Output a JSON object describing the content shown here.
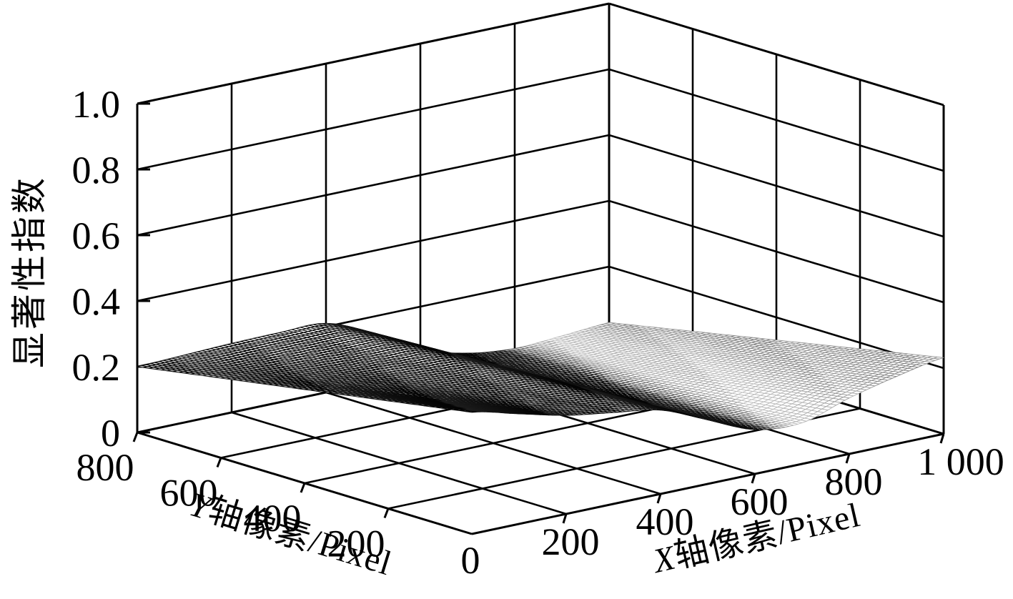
{
  "figure": {
    "background": "#ffffff",
    "line_color": "#000000",
    "kind": "3D mesh surface plot"
  },
  "z_axis": {
    "label": "显著性指数",
    "ticks": [
      "0",
      "0.2",
      "0.4",
      "0.6",
      "0.8",
      "1.0"
    ],
    "tick_values": [
      0,
      0.2,
      0.4,
      0.6,
      0.8,
      1.0
    ],
    "range": [
      0,
      1
    ]
  },
  "y_axis": {
    "label": "Y轴像素/Pixel",
    "ticks": [
      "800",
      "600",
      "400",
      "200"
    ],
    "tick_values": [
      800,
      600,
      400,
      200
    ],
    "range": [
      0,
      800
    ]
  },
  "x_axis": {
    "label": "X轴像素/Pixel",
    "ticks": [
      "0",
      "200",
      "400",
      "600",
      "800",
      "1 000"
    ],
    "tick_values": [
      0,
      200,
      400,
      600,
      800,
      1000
    ],
    "range": [
      0,
      1000
    ]
  },
  "chart_data": {
    "type": "surface",
    "title": "",
    "xlabel": "X轴像素/Pixel",
    "ylabel": "Y轴像素/Pixel",
    "zlabel": "显著性指数",
    "x_range": [
      0,
      1000
    ],
    "y_range": [
      0,
      800
    ],
    "z_range": [
      0,
      1
    ],
    "grid": true,
    "legend": "none",
    "x_values": [
      0,
      100,
      200,
      300,
      400,
      500,
      600,
      700,
      800,
      900,
      1000
    ],
    "y_values": [
      0,
      200,
      400,
      600,
      800
    ],
    "z_grid": [
      [
        0.37,
        0.335,
        0.3,
        0.278,
        0.255,
        0.195,
        0.135,
        0.125,
        0.17,
        0.205,
        0.232
      ],
      [
        0.328,
        0.303,
        0.278,
        0.262,
        0.244,
        0.184,
        0.119,
        0.101,
        0.131,
        0.159,
        0.182
      ],
      [
        0.285,
        0.27,
        0.255,
        0.245,
        0.233,
        0.173,
        0.103,
        0.077,
        0.091,
        0.113,
        0.131
      ],
      [
        0.243,
        0.238,
        0.233,
        0.229,
        0.221,
        0.161,
        0.086,
        0.052,
        0.052,
        0.066,
        0.081
      ],
      [
        0.2,
        0.205,
        0.21,
        0.212,
        0.21,
        0.15,
        0.07,
        0.028,
        0.012,
        0.02,
        0.03
      ]
    ],
    "surface_shading": {
      "dark": "#0f0f0f",
      "pale_gap": "#b4b4b4",
      "plateau_gray": "#8a8a8a",
      "cell_fill": "#ffffff",
      "note": "descending left region rendered near-black, flat valley pale, rising right plateau gray"
    }
  }
}
